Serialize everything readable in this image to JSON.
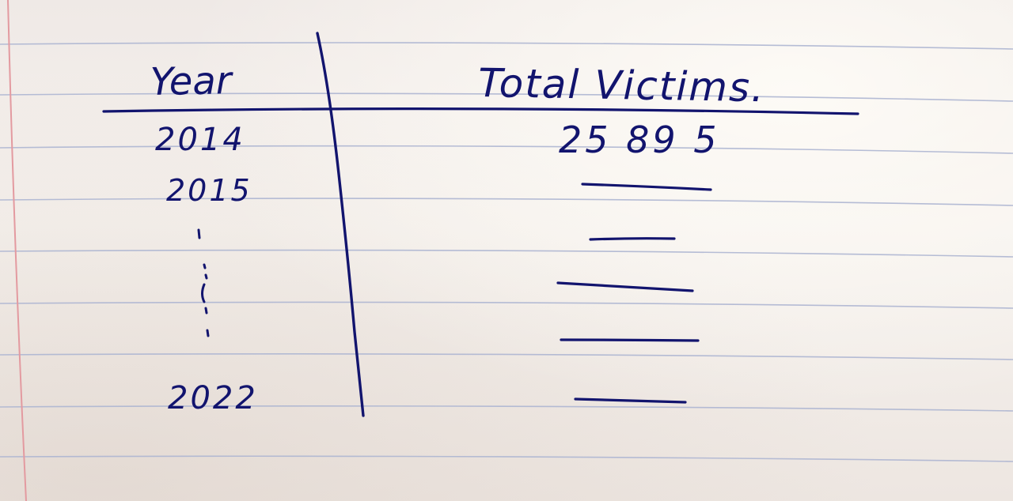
{
  "table": {
    "header": {
      "year": "Year",
      "total_victims": "Total Victims."
    },
    "rows": [
      {
        "year": "2014",
        "victims": "25 89 5"
      },
      {
        "year": "2015",
        "victims": ""
      },
      {
        "year": "",
        "victims": ""
      },
      {
        "year": "",
        "victims": ""
      },
      {
        "year": "",
        "victims": ""
      },
      {
        "year": "2022",
        "victims": ""
      }
    ]
  },
  "colors": {
    "ink": "#12146e",
    "paper": "#f3eeea",
    "rule_lines": "#aeb6d2",
    "margin_line": "#e39aa0"
  }
}
